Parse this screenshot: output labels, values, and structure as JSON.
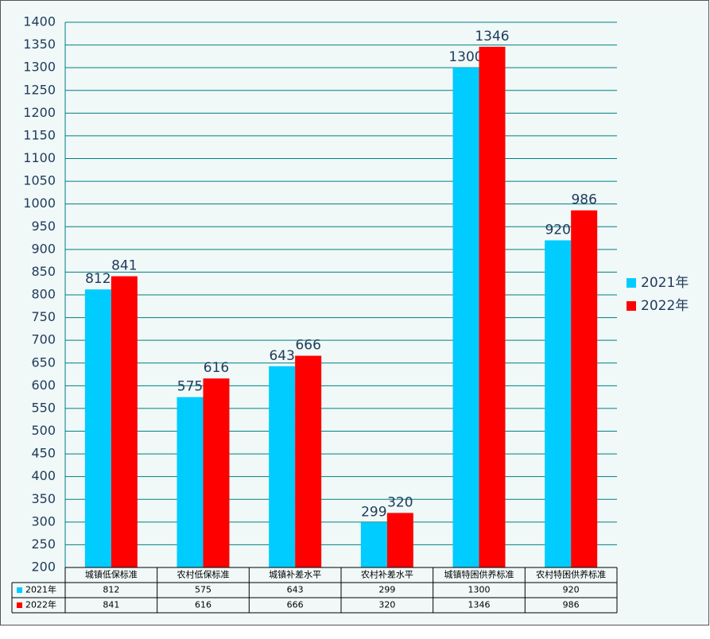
{
  "chart_data": {
    "type": "bar",
    "categories": [
      "城镇低保标准",
      "农村低保标准",
      "城镇补差水平",
      "农村补差水平",
      "城镇特困供养标准",
      "农村特困供养标准"
    ],
    "series": [
      {
        "name": "2021年",
        "color": "#00ccff",
        "values": [
          812,
          575,
          643,
          299,
          1300,
          920
        ]
      },
      {
        "name": "2022年",
        "color": "#ff0000",
        "values": [
          841,
          616,
          666,
          320,
          1346,
          986
        ]
      }
    ],
    "ylim": [
      200,
      1400
    ],
    "yticks": [
      200,
      250,
      300,
      350,
      400,
      450,
      500,
      550,
      600,
      650,
      700,
      750,
      800,
      850,
      900,
      950,
      1000,
      1050,
      1100,
      1150,
      1200,
      1250,
      1300,
      1350,
      1400
    ],
    "grid": true,
    "legend": "right",
    "data_table": true
  }
}
